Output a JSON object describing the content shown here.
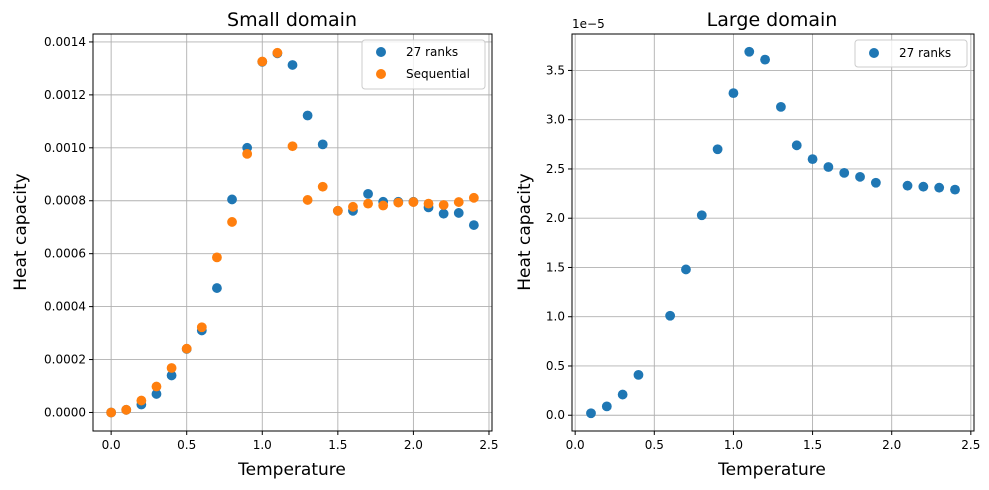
{
  "colors": {
    "series_1": "#1f77b4",
    "series_2": "#ff7f0e",
    "grid": "#b0b0b0"
  },
  "chart_data": [
    {
      "type": "scatter",
      "title": "Small domain",
      "xlabel": "Temperature",
      "ylabel": "Heat capacity",
      "xlim": [
        -0.12,
        2.52
      ],
      "ylim": [
        -7e-05,
        0.00143
      ],
      "xticks": [
        0.0,
        0.5,
        1.0,
        1.5,
        2.0,
        2.5
      ],
      "xtick_labels": [
        "0.0",
        "0.5",
        "1.0",
        "1.5",
        "2.0",
        "2.5"
      ],
      "yticks": [
        0.0,
        0.0002,
        0.0004,
        0.0006,
        0.0008,
        0.001,
        0.0012,
        0.0014
      ],
      "ytick_labels": [
        "0.0000",
        "0.0002",
        "0.0004",
        "0.0006",
        "0.0008",
        "0.0010",
        "0.0012",
        "0.0014"
      ],
      "grid": true,
      "legend_position": "top-right",
      "series": [
        {
          "name": "27 ranks",
          "color": "#1f77b4",
          "x": [
            0.0,
            0.1,
            0.2,
            0.3,
            0.4,
            0.5,
            0.6,
            0.7,
            0.8,
            0.9,
            1.0,
            1.1,
            1.2,
            1.3,
            1.4,
            1.5,
            1.6,
            1.7,
            1.8,
            1.9,
            2.0,
            2.1,
            2.2,
            2.3,
            2.4
          ],
          "y": [
            0.0,
            1e-05,
            3e-05,
            7e-05,
            0.00014,
            0.00024,
            0.00031,
            0.00047,
            0.000805,
            0.001,
            0.001325,
            0.001357,
            0.001313,
            0.001122,
            0.001013,
            0.000762,
            0.000762,
            0.000826,
            0.000796,
            0.000796,
            0.000796,
            0.000775,
            0.000751,
            0.000754,
            0.000708
          ]
        },
        {
          "name": "Sequential",
          "color": "#ff7f0e",
          "x": [
            0.0,
            0.1,
            0.2,
            0.3,
            0.4,
            0.5,
            0.6,
            0.7,
            0.8,
            0.9,
            1.0,
            1.1,
            1.2,
            1.3,
            1.4,
            1.5,
            1.6,
            1.7,
            1.8,
            1.9,
            2.0,
            2.1,
            2.2,
            2.3,
            2.4
          ],
          "y": [
            0.0,
            1e-05,
            4.5e-05,
            9.8e-05,
            0.000168,
            0.000241,
            0.000322,
            0.000586,
            0.00072,
            0.000977,
            0.001326,
            0.001359,
            0.001006,
            0.000803,
            0.000853,
            0.000762,
            0.000777,
            0.000789,
            0.000782,
            0.000793,
            0.000795,
            0.000789,
            0.000784,
            0.000795,
            0.000811
          ]
        }
      ]
    },
    {
      "type": "scatter",
      "title": "Large domain",
      "xlabel": "Temperature",
      "ylabel": "Heat capacity",
      "offset_text": "1e−5",
      "xlim": [
        -0.02,
        2.52
      ],
      "ylim": [
        -0.16,
        3.87
      ],
      "xticks": [
        0.0,
        0.5,
        1.0,
        1.5,
        2.0,
        2.5
      ],
      "xtick_labels": [
        "0.0",
        "0.5",
        "1.0",
        "1.5",
        "2.0",
        "2.5"
      ],
      "yticks": [
        0.0,
        0.5,
        1.0,
        1.5,
        2.0,
        2.5,
        3.0,
        3.5
      ],
      "ytick_labels": [
        "0.0",
        "0.5",
        "1.0",
        "1.5",
        "2.0",
        "2.5",
        "3.0",
        "3.5"
      ],
      "grid": true,
      "legend_position": "top-right",
      "series": [
        {
          "name": "27 ranks",
          "color": "#1f77b4",
          "x": [
            0.1,
            0.2,
            0.3,
            0.4,
            0.6,
            0.7,
            0.8,
            0.9,
            1.0,
            1.1,
            1.2,
            1.3,
            1.4,
            1.5,
            1.6,
            1.7,
            1.8,
            1.9,
            2.1,
            2.2,
            2.3,
            2.4
          ],
          "y": [
            0.02,
            0.09,
            0.21,
            0.41,
            1.01,
            1.48,
            2.03,
            2.7,
            3.27,
            3.69,
            3.61,
            3.13,
            2.74,
            2.6,
            2.52,
            2.46,
            2.42,
            2.36,
            2.33,
            2.32,
            2.31,
            2.29
          ]
        }
      ]
    }
  ]
}
